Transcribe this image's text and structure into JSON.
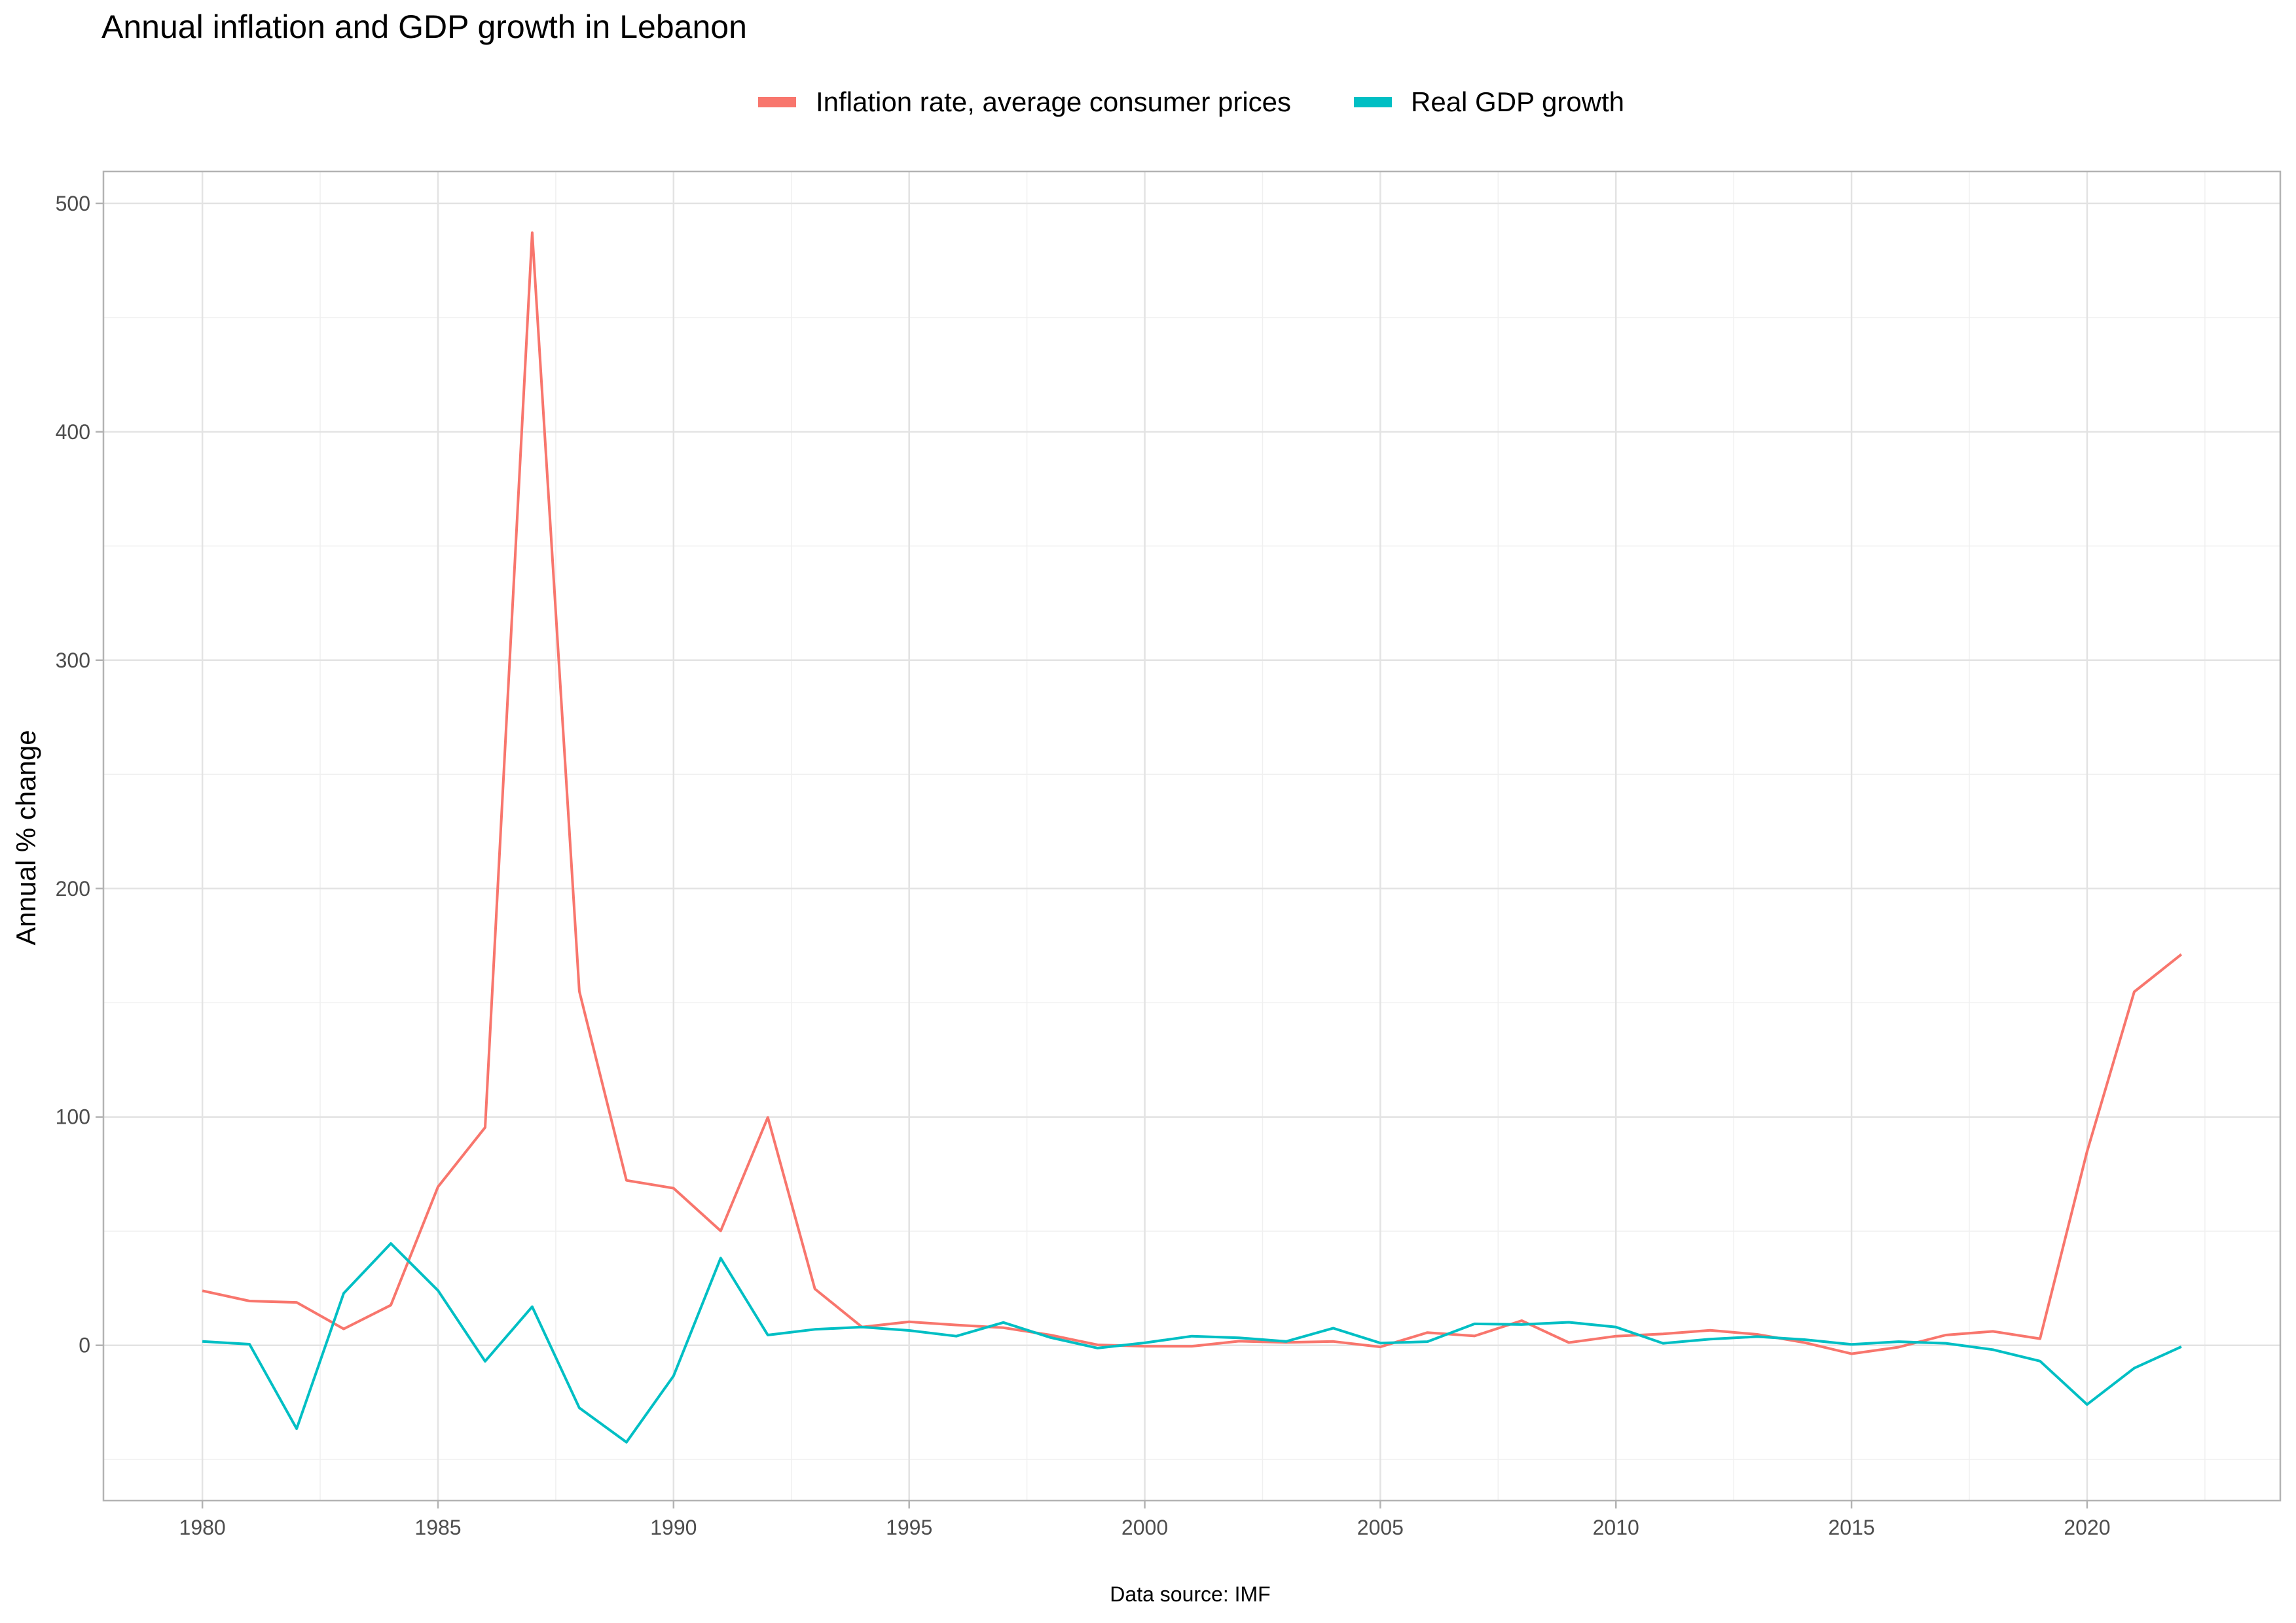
{
  "chart_data": {
    "type": "line",
    "title": "Annual inflation and GDP growth in Lebanon",
    "xlabel": "",
    "ylabel": "Annual % change",
    "caption": "Data source: IMF",
    "xlim": [
      1977.9,
      2024.1
    ],
    "ylim": [
      -68,
      514
    ],
    "x_ticks": [
      1980,
      1985,
      1990,
      1995,
      2000,
      2005,
      2010,
      2015,
      2020
    ],
    "y_ticks": [
      0,
      100,
      200,
      300,
      400,
      500
    ],
    "grid": true,
    "legend_position": "top",
    "x": [
      1980,
      1981,
      1982,
      1983,
      1984,
      1985,
      1986,
      1987,
      1988,
      1989,
      1990,
      1991,
      1992,
      1993,
      1994,
      1995,
      1996,
      1997,
      1998,
      1999,
      2000,
      2001,
      2002,
      2003,
      2004,
      2005,
      2006,
      2007,
      2008,
      2009,
      2010,
      2011,
      2012,
      2013,
      2014,
      2015,
      2016,
      2017,
      2018,
      2019,
      2020,
      2021,
      2022
    ],
    "series": [
      {
        "name": "Inflation rate, average consumer prices",
        "color": "#F8766D",
        "values": [
          23.9,
          19.4,
          18.8,
          7.2,
          17.6,
          69.4,
          95.4,
          487.2,
          155.0,
          72.2,
          68.8,
          50.1,
          99.8,
          24.7,
          8.0,
          10.3,
          8.9,
          7.7,
          4.5,
          0.2,
          -0.4,
          -0.4,
          1.8,
          1.3,
          1.7,
          -0.7,
          5.6,
          4.1,
          10.8,
          1.2,
          4.0,
          5.0,
          6.6,
          4.8,
          1.2,
          -3.7,
          -0.8,
          4.5,
          6.1,
          2.9,
          84.9,
          154.8,
          171.2
        ]
      },
      {
        "name": "Real GDP growth",
        "color": "#00BFC4",
        "values": [
          1.7,
          0.5,
          -36.5,
          22.8,
          44.6,
          24.0,
          -7.0,
          16.9,
          -27.4,
          -42.4,
          -13.4,
          38.2,
          4.5,
          7.0,
          8.0,
          6.5,
          4.0,
          10.0,
          3.4,
          -1.2,
          1.1,
          4.0,
          3.3,
          1.7,
          7.5,
          1.0,
          1.6,
          9.4,
          9.1,
          10.1,
          8.0,
          0.9,
          2.7,
          3.8,
          2.5,
          0.4,
          1.6,
          0.9,
          -1.9,
          -6.9,
          -25.9,
          -10.0,
          -0.6
        ]
      }
    ]
  }
}
